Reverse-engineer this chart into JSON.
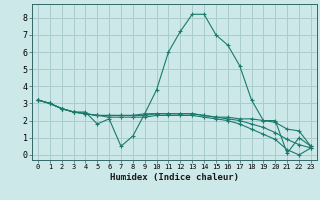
{
  "title": "",
  "xlabel": "Humidex (Indice chaleur)",
  "background_color": "#cce8e8",
  "grid_color": "#aacccc",
  "line_color": "#1a7a6e",
  "xlim": [
    -0.5,
    23.5
  ],
  "ylim": [
    -0.3,
    8.8
  ],
  "xticks": [
    0,
    1,
    2,
    3,
    4,
    5,
    6,
    7,
    8,
    9,
    10,
    11,
    12,
    13,
    14,
    15,
    16,
    17,
    18,
    19,
    20,
    21,
    22,
    23
  ],
  "yticks": [
    0,
    1,
    2,
    3,
    4,
    5,
    6,
    7,
    8
  ],
  "series": [
    [
      3.2,
      3.0,
      2.7,
      2.5,
      2.5,
      1.8,
      2.1,
      0.5,
      1.1,
      2.4,
      3.8,
      6.0,
      7.2,
      8.2,
      8.2,
      7.0,
      6.4,
      5.2,
      3.2,
      2.0,
      2.0,
      0.1,
      1.0,
      0.5
    ],
    [
      3.2,
      3.0,
      2.7,
      2.5,
      2.4,
      2.3,
      2.3,
      2.3,
      2.3,
      2.4,
      2.4,
      2.4,
      2.4,
      2.4,
      2.3,
      2.2,
      2.2,
      2.1,
      2.1,
      2.0,
      1.9,
      1.5,
      1.4,
      0.5
    ],
    [
      3.2,
      3.0,
      2.7,
      2.5,
      2.4,
      2.3,
      2.3,
      2.3,
      2.3,
      2.3,
      2.4,
      2.4,
      2.4,
      2.4,
      2.3,
      2.2,
      2.1,
      2.0,
      1.8,
      1.6,
      1.3,
      0.9,
      0.6,
      0.4
    ],
    [
      3.2,
      3.0,
      2.7,
      2.5,
      2.4,
      2.3,
      2.2,
      2.2,
      2.2,
      2.2,
      2.3,
      2.3,
      2.3,
      2.3,
      2.2,
      2.1,
      2.0,
      1.8,
      1.5,
      1.2,
      0.9,
      0.3,
      0.0,
      0.4
    ]
  ],
  "xlabel_fontsize": 6.5,
  "tick_fontsize": 5.0,
  "ytick_fontsize": 6.0
}
